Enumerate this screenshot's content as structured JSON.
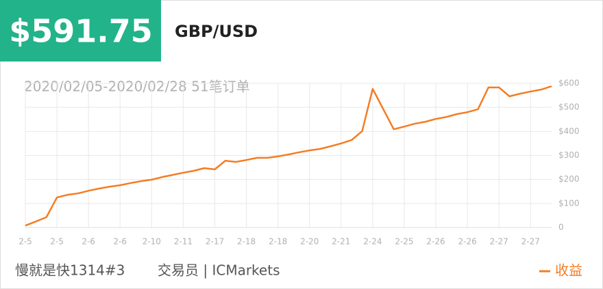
{
  "header": {
    "amount": "$591.75",
    "symbol": "GBP/USD"
  },
  "chart_data": {
    "type": "line",
    "subtitle": "2020/02/05-2020/02/28 51笔订单",
    "x": [
      0,
      1,
      2,
      3,
      4,
      5,
      6,
      7,
      8,
      9,
      10,
      11,
      12,
      13,
      14,
      15,
      16,
      17,
      18,
      19,
      20,
      21,
      22,
      23,
      24,
      25,
      26,
      27,
      28,
      29,
      30,
      31,
      32,
      33,
      34,
      35,
      36,
      37,
      38,
      39,
      40,
      41,
      42,
      43,
      44,
      45,
      46,
      47,
      48,
      49,
      50
    ],
    "series": [
      {
        "name": "收益",
        "color": "#f57c22",
        "values": [
          8,
          25,
          43,
          125,
          136,
          142,
          153,
          162,
          170,
          176,
          185,
          193,
          199,
          210,
          219,
          228,
          236,
          247,
          242,
          278,
          273,
          281,
          290,
          290,
          296,
          304,
          313,
          321,
          327,
          338,
          350,
          364,
          401,
          577,
          493,
          409,
          420,
          432,
          440,
          452,
          460,
          472,
          480,
          492,
          583,
          583,
          546,
          557,
          566,
          574,
          588
        ]
      }
    ],
    "xlim": [
      0,
      50
    ],
    "xticks": [
      {
        "value": 0,
        "label": "2-5"
      },
      {
        "value": 3,
        "label": "2-5"
      },
      {
        "value": 6,
        "label": "2-6"
      },
      {
        "value": 9,
        "label": "2-6"
      },
      {
        "value": 12,
        "label": "2-10"
      },
      {
        "value": 15,
        "label": "2-11"
      },
      {
        "value": 18,
        "label": "2-17"
      },
      {
        "value": 21,
        "label": "2-18"
      },
      {
        "value": 24,
        "label": "2-18"
      },
      {
        "value": 27,
        "label": "2-20"
      },
      {
        "value": 30,
        "label": "2-21"
      },
      {
        "value": 33,
        "label": "2-24"
      },
      {
        "value": 36,
        "label": "2-25"
      },
      {
        "value": 39,
        "label": "2-26"
      },
      {
        "value": 42,
        "label": "2-26"
      },
      {
        "value": 45,
        "label": "2-27"
      },
      {
        "value": 48,
        "label": "2-27"
      }
    ],
    "ylim": [
      0,
      600
    ],
    "yticks": [
      0,
      {
        "value": 100,
        "label": "$100"
      },
      {
        "value": 200,
        "label": "$200"
      },
      {
        "value": 300,
        "label": "$300"
      },
      {
        "value": 400,
        "label": "$400"
      },
      {
        "value": 500,
        "label": "$500"
      },
      {
        "value": 600,
        "label": "$600"
      }
    ],
    "grid": true
  },
  "footer": {
    "trader": "慢就是快1314#3",
    "role": "交易员 | ICMarkets"
  }
}
